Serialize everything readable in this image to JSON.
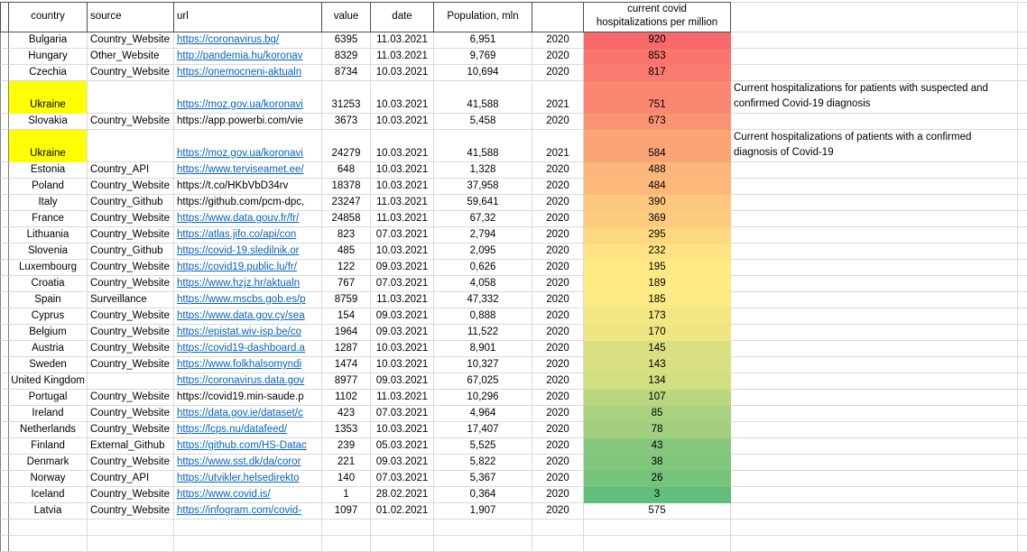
{
  "header": {
    "country": "country",
    "source": "source",
    "url": "url",
    "value": "value",
    "date": "date",
    "population": "Population, mln",
    "year": "",
    "hosp_line1": "current covid",
    "hosp_line2": "hospitalizations per million",
    "notes": ""
  },
  "colors": {
    "highlight_yellow": "#FFFF00",
    "hyperlink_blue": "#0563C1",
    "scale_max_red": "#F8696B",
    "scale_mid_yellow": "#FFEB84",
    "scale_min_green": "#63BE7B"
  },
  "rows": [
    {
      "country": "Bulgaria",
      "source": "Country_Website",
      "url": "https://coronavirus.bg/",
      "url_link": true,
      "value": "6395",
      "date": "11.03.2021",
      "population": "6,951",
      "year": "2020",
      "hosp": "920",
      "hosp_color": "#F8696B",
      "highlight": false,
      "tall": false,
      "note": ""
    },
    {
      "country": "Hungary",
      "source": "Other_Website",
      "url": "http://pandemia.hu/koronav",
      "url_link": true,
      "value": "8329",
      "date": "11.03.2021",
      "population": "9,769",
      "year": "2020",
      "hosp": "853",
      "hosp_color": "#F9756D",
      "highlight": false,
      "tall": false,
      "note": ""
    },
    {
      "country": "Czechia",
      "source": "Country_Website",
      "url": "https://onemocneni-aktualn",
      "url_link": true,
      "value": "8734",
      "date": "10.03.2021",
      "population": "10,694",
      "year": "2020",
      "hosp": "817",
      "hosp_color": "#F97B6F",
      "highlight": false,
      "tall": false,
      "note": ""
    },
    {
      "country": "Ukraine",
      "source": "",
      "url": "https://moz.gov.ua/koronavi",
      "url_link": true,
      "value": "31253",
      "date": "10.03.2021",
      "population": "41,588",
      "year": "2021",
      "hosp": "751",
      "hosp_color": "#FA8771",
      "highlight": true,
      "tall": true,
      "note": "Current hospitalizations for patients with suspected and confirmed Covid-19 diagnosis"
    },
    {
      "country": "Slovakia",
      "source": "Country_Website",
      "url": "https://app.powerbi.com/vie",
      "url_link": false,
      "value": "3673",
      "date": "10.03.2021",
      "population": "5,458",
      "year": "2020",
      "hosp": "673",
      "hosp_color": "#FA9573",
      "highlight": false,
      "tall": false,
      "note": ""
    },
    {
      "country": "Ukraine",
      "source": "",
      "url": "https://moz.gov.ua/koronavi",
      "url_link": true,
      "value": "24279",
      "date": "10.03.2021",
      "population": "41,588",
      "year": "2021",
      "hosp": "584",
      "hosp_color": "#FBA577",
      "highlight": true,
      "tall": true,
      "note": "Current hospitalizations of patients with a confirmed diagnosis of Covid-19"
    },
    {
      "country": "Estonia",
      "source": "Country_API",
      "url": "https://www.terviseamet.ee/",
      "url_link": true,
      "value": "648",
      "date": "10.03.2021",
      "population": "1,328",
      "year": "2020",
      "hosp": "488",
      "hosp_color": "#FCB67A",
      "highlight": false,
      "tall": false,
      "note": ""
    },
    {
      "country": "Poland",
      "source": "Country_Website",
      "url": "https://t.co/HKbVbD34rv",
      "url_link": false,
      "value": "18378",
      "date": "10.03.2021",
      "population": "37,958",
      "year": "2020",
      "hosp": "484",
      "hosp_color": "#FCB77A",
      "highlight": false,
      "tall": false,
      "note": ""
    },
    {
      "country": "Italy",
      "source": "Country_Github",
      "url": "https://github.com/pcm-dpc,",
      "url_link": false,
      "value": "23247",
      "date": "11.03.2021",
      "population": "59,641",
      "year": "2020",
      "hosp": "390",
      "hosp_color": "#FDC77D",
      "highlight": false,
      "tall": false,
      "note": ""
    },
    {
      "country": "France",
      "source": "Country_Website",
      "url": "https://www.data.gouv.fr/fr/",
      "url_link": true,
      "value": "24858",
      "date": "11.03.2021",
      "population": "67,32",
      "year": "2020",
      "hosp": "369",
      "hosp_color": "#FDCB7E",
      "highlight": false,
      "tall": false,
      "note": ""
    },
    {
      "country": "Lithuania",
      "source": "Country_Website",
      "url": "https://atlas.jifo.co/api/con",
      "url_link": true,
      "value": "823",
      "date": "07.03.2021",
      "population": "2,794",
      "year": "2020",
      "hosp": "295",
      "hosp_color": "#FED880",
      "highlight": false,
      "tall": false,
      "note": ""
    },
    {
      "country": "Slovenia",
      "source": "Country_Github",
      "url": "https://covid-19.sledilnik.or",
      "url_link": true,
      "value": "485",
      "date": "10.03.2021",
      "population": "2,095",
      "year": "2020",
      "hosp": "232",
      "hosp_color": "#FFE383",
      "highlight": false,
      "tall": false,
      "note": ""
    },
    {
      "country": "Luxembourg",
      "source": "Country_Website",
      "url": "https://covid19.public.lu/fr/",
      "url_link": true,
      "value": "122",
      "date": "09.03.2021",
      "population": "0,626",
      "year": "2020",
      "hosp": "195",
      "hosp_color": "#FFEA84",
      "highlight": false,
      "tall": false,
      "note": ""
    },
    {
      "country": "Croatia",
      "source": "Country_Website",
      "url": "https://www.hzjz.hr/aktualn",
      "url_link": true,
      "value": "767",
      "date": "07.03.2021",
      "population": "4,058",
      "year": "2020",
      "hosp": "189",
      "hosp_color": "#FFEB84",
      "highlight": false,
      "tall": false,
      "note": ""
    },
    {
      "country": "Spain",
      "source": "Surveillance",
      "url": "https://www.mscbs.gob.es/p",
      "url_link": true,
      "value": "8759",
      "date": "11.03.2021",
      "population": "47,332",
      "year": "2020",
      "hosp": "185",
      "hosp_color": "#FCEA84",
      "highlight": false,
      "tall": false,
      "note": ""
    },
    {
      "country": "Cyprus",
      "source": "Country_Website",
      "url": "https://www.data.gov.cy/sea",
      "url_link": true,
      "value": "154",
      "date": "09.03.2021",
      "population": "0,888",
      "year": "2020",
      "hosp": "173",
      "hosp_color": "#F2E783",
      "highlight": false,
      "tall": false,
      "note": ""
    },
    {
      "country": "Belgium",
      "source": "Country_Website",
      "url": "https://epistat.wiv-isp.be/co",
      "url_link": true,
      "value": "1964",
      "date": "09.03.2021",
      "population": "11,522",
      "year": "2020",
      "hosp": "170",
      "hosp_color": "#EFE683",
      "highlight": false,
      "tall": false,
      "note": ""
    },
    {
      "country": "Austria",
      "source": "Country_Website",
      "url": "https://covid19-dashboard.a",
      "url_link": true,
      "value": "1287",
      "date": "10.03.2021",
      "population": "8,901",
      "year": "2020",
      "hosp": "145",
      "hosp_color": "#DAE082",
      "highlight": false,
      "tall": false,
      "note": ""
    },
    {
      "country": "Sweden",
      "source": "Country_Website",
      "url": "https://www.folkhalsomyndi",
      "url_link": true,
      "value": "1474",
      "date": "10.03.2021",
      "population": "10,327",
      "year": "2020",
      "hosp": "143",
      "hosp_color": "#D8E082",
      "highlight": false,
      "tall": false,
      "note": ""
    },
    {
      "country": "United Kingdom",
      "source": "",
      "url": "https://coronavirus.data.gov",
      "url_link": true,
      "value": "8977",
      "date": "09.03.2021",
      "population": "67,025",
      "year": "2020",
      "hosp": "134",
      "hosp_color": "#D1DE81",
      "highlight": false,
      "tall": false,
      "note": ""
    },
    {
      "country": "Portugal",
      "source": "Country_Website",
      "url": "https://covid19.min-saude.p",
      "url_link": false,
      "value": "1102",
      "date": "11.03.2021",
      "population": "10,296",
      "year": "2020",
      "hosp": "107",
      "hosp_color": "#BAD780",
      "highlight": false,
      "tall": false,
      "note": ""
    },
    {
      "country": "Ireland",
      "source": "Country_Website",
      "url": "https://data.gov.ie/dataset/c",
      "url_link": true,
      "value": "423",
      "date": "07.03.2021",
      "population": "4,964",
      "year": "2020",
      "hosp": "85",
      "hosp_color": "#A8D27F",
      "highlight": false,
      "tall": false,
      "note": ""
    },
    {
      "country": "Netherlands",
      "source": "Country_Website",
      "url": "https://lcps.nu/datafeed/",
      "url_link": true,
      "value": "1353",
      "date": "10.03.2021",
      "population": "17,407",
      "year": "2020",
      "hosp": "78",
      "hosp_color": "#A2D07F",
      "highlight": false,
      "tall": false,
      "note": ""
    },
    {
      "country": "Finland",
      "source": "External_Github",
      "url": "https://github.com/HS-Datac",
      "url_link": true,
      "value": "239",
      "date": "05.03.2021",
      "population": "5,525",
      "year": "2020",
      "hosp": "43",
      "hosp_color": "#85C87D",
      "highlight": false,
      "tall": false,
      "note": ""
    },
    {
      "country": "Denmark",
      "source": "Country_Website",
      "url": "https://www.sst.dk/da/coror",
      "url_link": true,
      "value": "221",
      "date": "09.03.2021",
      "population": "5,822",
      "year": "2020",
      "hosp": "38",
      "hosp_color": "#80C77D",
      "highlight": false,
      "tall": false,
      "note": ""
    },
    {
      "country": "Norway",
      "source": "Country_API",
      "url": "https://utvikler.helsedirekto",
      "url_link": true,
      "value": "140",
      "date": "07.03.2021",
      "population": "5,367",
      "year": "2020",
      "hosp": "26",
      "hosp_color": "#76C47C",
      "highlight": false,
      "tall": false,
      "note": ""
    },
    {
      "country": "Iceland",
      "source": "Country_Website",
      "url": "https://www.covid.is/",
      "url_link": true,
      "value": "1",
      "date": "28.02.2021",
      "population": "0,364",
      "year": "2020",
      "hosp": "3",
      "hosp_color": "#63BE7B",
      "highlight": false,
      "tall": false,
      "note": ""
    },
    {
      "country": "Latvia",
      "source": "Country_Website",
      "url": "https://infogram.com/covid-",
      "url_link": true,
      "value": "1097",
      "date": "01.02.2021",
      "population": "1,907",
      "year": "2020",
      "hosp": "575",
      "hosp_color": "",
      "highlight": false,
      "tall": false,
      "note": ""
    }
  ],
  "trailing_empty_rows": 2
}
